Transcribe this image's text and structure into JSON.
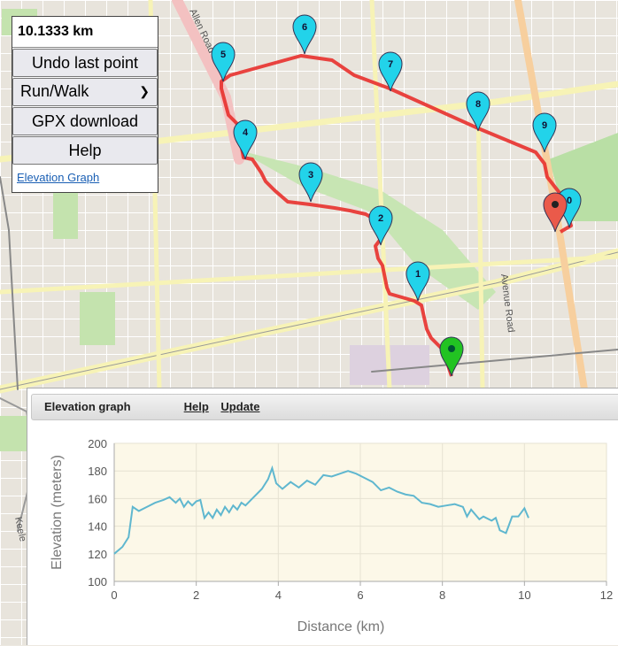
{
  "controls": {
    "distance": "10.1333 km",
    "undo_label": "Undo last point",
    "mode_selected": "Run/Walk",
    "gpx_label": "GPX download",
    "help_label": "Help",
    "elevation_link": "Elevation Graph"
  },
  "map": {
    "street_labels": [
      "Allen Road",
      "Avenue Road",
      "Keele"
    ],
    "waypoint_labels": [
      "1",
      "2",
      "3",
      "4",
      "5",
      "6",
      "7",
      "8",
      "9",
      "0"
    ],
    "route_color": "#e8302c",
    "start_marker_color": "#22c322",
    "end_marker_color": "#ea5a4a",
    "waypoint_color": "#22d3ea"
  },
  "elevation_panel": {
    "title": "Elevation graph",
    "help_link": "Help",
    "update_link": "Update"
  },
  "chart_data": {
    "type": "line",
    "title": "",
    "xlabel": "Distance (km)",
    "ylabel": "Elevation (meters)",
    "xlim": [
      0,
      12
    ],
    "ylim": [
      100,
      200
    ],
    "x_ticks": [
      "0",
      "2",
      "4",
      "6",
      "8",
      "10",
      "12"
    ],
    "y_ticks": [
      "100",
      "120",
      "140",
      "160",
      "180",
      "200"
    ],
    "grid": true,
    "line_color": "#5fb7cf",
    "background_color": "#fcf8e8",
    "series": [
      {
        "x": [
          0,
          0.2,
          0.35,
          0.45,
          0.6,
          0.8,
          1.0,
          1.2,
          1.35,
          1.5,
          1.6,
          1.7,
          1.8,
          1.9,
          2.0,
          2.1,
          2.2,
          2.3,
          2.4,
          2.5,
          2.6,
          2.7,
          2.8,
          2.9,
          3.0,
          3.1,
          3.2,
          3.4,
          3.6,
          3.75,
          3.85,
          3.95,
          4.1,
          4.3,
          4.5,
          4.7,
          4.9,
          5.1,
          5.3,
          5.5,
          5.7,
          5.9,
          6.1,
          6.3,
          6.5,
          6.7,
          6.9,
          7.1,
          7.3,
          7.5,
          7.7,
          7.9,
          8.1,
          8.3,
          8.5,
          8.6,
          8.7,
          8.9,
          9.0,
          9.2,
          9.3,
          9.4,
          9.55,
          9.7,
          9.85,
          10.0,
          10.1
        ],
        "y": [
          120,
          125,
          132,
          154,
          151,
          154,
          157,
          159,
          161,
          157,
          160,
          154,
          158,
          155,
          158,
          159,
          146,
          150,
          146,
          152,
          148,
          154,
          150,
          155,
          152,
          157,
          155,
          161,
          167,
          174,
          182,
          171,
          167,
          172,
          168,
          173,
          170,
          177,
          176,
          178,
          180,
          178,
          175,
          172,
          166,
          168,
          165,
          163,
          162,
          157,
          156,
          154,
          155,
          156,
          154,
          147,
          152,
          145,
          147,
          144,
          146,
          137,
          135,
          147,
          147,
          153,
          146
        ]
      }
    ]
  }
}
